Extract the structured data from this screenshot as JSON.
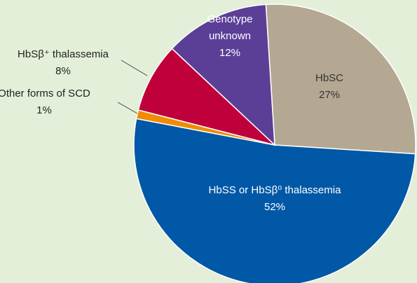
{
  "chart_data": {
    "type": "pie",
    "categories": [
      "HbSC",
      "HbSS or HbSβ⁰ thalassemia",
      "Other forms of SCD",
      "HbSβ⁺ thalassemia",
      "Genotype unknown"
    ],
    "values": [
      27,
      52,
      1,
      8,
      12
    ],
    "value_labels": [
      "27%",
      "52%",
      "1%",
      "8%",
      "12%"
    ],
    "colors": [
      "#b5a893",
      "#0058a6",
      "#f08c00",
      "#c0003b",
      "#5b3f97"
    ]
  }
}
